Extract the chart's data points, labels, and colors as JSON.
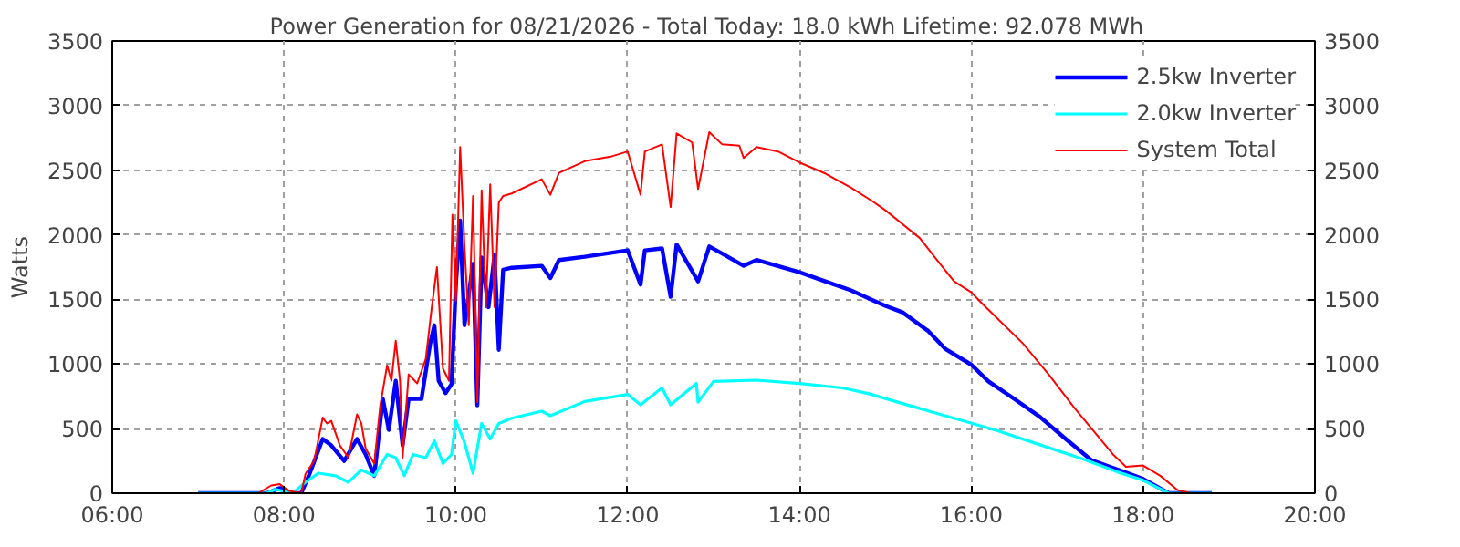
{
  "chart_data": {
    "type": "line",
    "title": "Power Generation for 08/21/2026 - Total Today: 18.0 kWh   Lifetime: 92.078 MWh",
    "ylabel": "Watts",
    "xlim": [
      6,
      20
    ],
    "xticks": [
      {
        "value": 6,
        "label": "06:00"
      },
      {
        "value": 8,
        "label": "08:00"
      },
      {
        "value": 10,
        "label": "10:00"
      },
      {
        "value": 12,
        "label": "12:00"
      },
      {
        "value": 14,
        "label": "14:00"
      },
      {
        "value": 16,
        "label": "16:00"
      },
      {
        "value": 18,
        "label": "18:00"
      },
      {
        "value": 20,
        "label": "20:00"
      }
    ],
    "ylim": [
      0,
      3500
    ],
    "yticks": [
      0,
      500,
      1000,
      1500,
      2000,
      2500,
      3000,
      3500
    ],
    "y2lim": [
      0,
      3500
    ],
    "y2ticks": [
      0,
      500,
      1000,
      1500,
      2000,
      2500,
      3000,
      3500
    ],
    "grid": true,
    "legend": "top right",
    "line_style": "solid",
    "series": [
      {
        "name": "2.5kw Inverter",
        "color": "#0000ff",
        "x": [
          7.0,
          7.8,
          7.95,
          8.1,
          8.2,
          8.3,
          8.45,
          8.55,
          8.7,
          8.85,
          8.95,
          9.05,
          9.15,
          9.22,
          9.3,
          9.38,
          9.45,
          9.6,
          9.7,
          9.75,
          9.8,
          9.88,
          9.95,
          10.0,
          10.05,
          10.1,
          10.2,
          10.25,
          10.3,
          10.38,
          10.45,
          10.5,
          10.55,
          10.65,
          11.0,
          11.1,
          11.2,
          11.5,
          12.0,
          12.15,
          12.2,
          12.4,
          12.5,
          12.57,
          12.82,
          12.95,
          13.1,
          13.35,
          13.5,
          14.0,
          14.3,
          14.6,
          14.85,
          15.0,
          15.2,
          15.5,
          15.7,
          16.0,
          16.2,
          16.5,
          16.8,
          17.1,
          17.4,
          17.8,
          18.0,
          18.3,
          18.8
        ],
        "values": [
          0,
          0,
          40,
          0,
          0,
          155,
          420,
          370,
          250,
          420,
          300,
          135,
          730,
          490,
          870,
          370,
          730,
          730,
          1155,
          1300,
          870,
          775,
          845,
          1610,
          2110,
          1300,
          1775,
          680,
          1825,
          1440,
          1845,
          1110,
          1730,
          1745,
          1760,
          1665,
          1805,
          1830,
          1880,
          1615,
          1880,
          1895,
          1520,
          1925,
          1640,
          1910,
          1855,
          1760,
          1805,
          1710,
          1640,
          1570,
          1495,
          1450,
          1400,
          1255,
          1115,
          995,
          865,
          730,
          590,
          420,
          255,
          160,
          110,
          0,
          0
        ]
      },
      {
        "name": "2.0kw Inverter",
        "color": "#00ffff",
        "x": [
          7.0,
          7.8,
          7.9,
          8.1,
          8.25,
          8.4,
          8.6,
          8.75,
          8.9,
          9.05,
          9.2,
          9.3,
          9.4,
          9.5,
          9.65,
          9.75,
          9.85,
          9.95,
          10.0,
          10.1,
          10.2,
          10.3,
          10.4,
          10.5,
          10.65,
          11.0,
          11.1,
          11.5,
          12.0,
          12.15,
          12.4,
          12.5,
          12.8,
          12.82,
          13.0,
          13.5,
          14.0,
          14.5,
          14.81,
          15.3,
          15.8,
          16.3,
          16.8,
          17.3,
          17.7,
          18.0,
          18.3,
          18.8
        ],
        "values": [
          0,
          0,
          30,
          0,
          85,
          155,
          135,
          85,
          180,
          135,
          300,
          275,
          135,
          300,
          275,
          405,
          230,
          300,
          560,
          395,
          155,
          540,
          420,
          540,
          580,
          635,
          600,
          710,
          765,
          685,
          815,
          685,
          850,
          705,
          865,
          875,
          850,
          815,
          770,
          675,
          580,
          485,
          375,
          265,
          165,
          100,
          0,
          0
        ]
      },
      {
        "name": "System Total",
        "color": "#ff0000",
        "x": [
          7.0,
          7.7,
          7.85,
          7.95,
          8.05,
          8.2,
          8.25,
          8.35,
          8.45,
          8.5,
          8.55,
          8.6,
          8.65,
          8.75,
          8.85,
          8.9,
          8.95,
          9.05,
          9.12,
          9.2,
          9.25,
          9.3,
          9.35,
          9.38,
          9.45,
          9.55,
          9.65,
          9.72,
          9.78,
          9.85,
          9.92,
          9.96,
          10.0,
          10.05,
          10.1,
          10.15,
          10.2,
          10.25,
          10.3,
          10.35,
          10.4,
          10.45,
          10.5,
          10.55,
          10.65,
          11.0,
          11.1,
          11.2,
          11.5,
          11.8,
          12.0,
          12.15,
          12.2,
          12.4,
          12.5,
          12.57,
          12.75,
          12.82,
          12.95,
          13.1,
          13.3,
          13.35,
          13.5,
          13.75,
          14.0,
          14.3,
          14.6,
          14.85,
          15.0,
          15.4,
          15.6,
          15.8,
          16.0,
          16.1,
          16.3,
          16.6,
          16.9,
          17.2,
          17.5,
          17.65,
          17.8,
          18.0,
          18.2,
          18.4,
          18.55,
          18.8
        ],
        "values": [
          0,
          0,
          60,
          70,
          20,
          0,
          150,
          250,
          585,
          540,
          560,
          465,
          370,
          275,
          610,
          540,
          345,
          230,
          680,
          990,
          870,
          1180,
          870,
          275,
          920,
          850,
          1040,
          1440,
          1750,
          965,
          870,
          2155,
          1490,
          2680,
          1920,
          1300,
          2300,
          705,
          2345,
          1440,
          2390,
          1440,
          2250,
          2300,
          2320,
          2430,
          2310,
          2480,
          2570,
          2605,
          2645,
          2310,
          2645,
          2700,
          2215,
          2785,
          2715,
          2355,
          2795,
          2700,
          2690,
          2595,
          2680,
          2645,
          2560,
          2475,
          2365,
          2260,
          2190,
          1975,
          1805,
          1640,
          1555,
          1485,
          1355,
          1160,
          920,
          660,
          420,
          300,
          205,
          215,
          135,
          25,
          0,
          0
        ]
      }
    ]
  }
}
